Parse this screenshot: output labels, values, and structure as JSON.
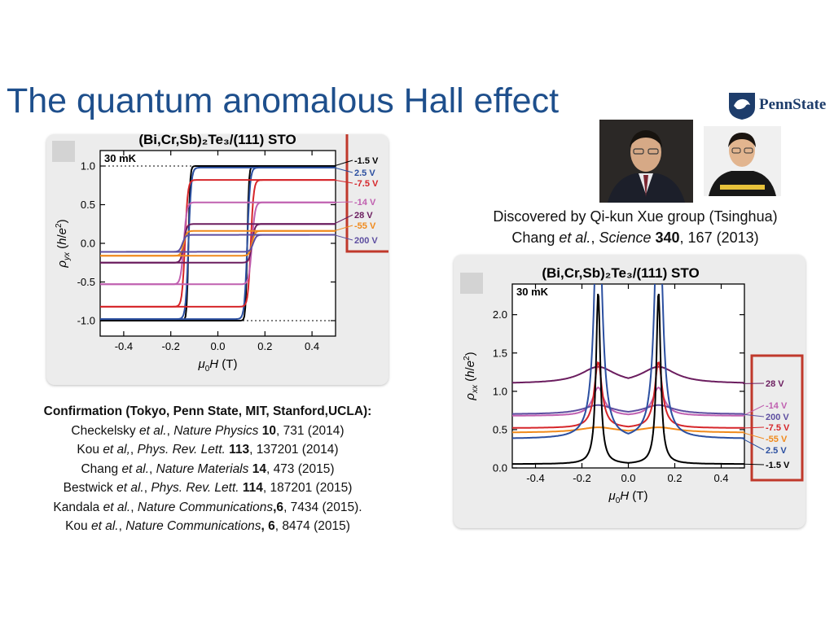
{
  "slide": {
    "title": "The quantum anomalous Hall effect",
    "logo_text": "PennState",
    "credit_line1": "Discovered by Qi-kun Xue group (Tsinghua)",
    "credit_line2": {
      "authors": "Chang ",
      "etal": "et al.",
      "sep": ", ",
      "journal": "Science",
      "volume": " 340",
      "pages": ", 167 (2013)"
    },
    "confirmation": {
      "heading": "Confirmation (Tokyo, Penn State, MIT, Stanford,UCLA):",
      "refs": [
        {
          "a": "Checkelsky ",
          "e": "et al.",
          "s": ", ",
          "j": "Nature Physics",
          "v": " 10",
          "p": ", 731 (2014)"
        },
        {
          "a": "Kou ",
          "e": "et al,",
          "s": ", ",
          "j": "Phys. Rev. Lett.",
          "v": " 113",
          "p": ", 137201 (2014)"
        },
        {
          "a": "Chang ",
          "e": "et al.",
          "s": ", ",
          "j": "Nature Materials",
          "v": " 14",
          "p": ", 473 (2015)"
        },
        {
          "a": "Bestwick ",
          "e": "et al.",
          "s": ", ",
          "j": "Phys. Rev. Lett.",
          "v": " 114",
          "p": ", 187201 (2015)"
        },
        {
          "a": "Kandala ",
          "e": "et al.",
          "s": ", ",
          "j": "Nature Communications",
          "v": ",6",
          "p": ", 7434 (2015)."
        },
        {
          "a": "Kou ",
          "e": "et al.",
          "s": ", ",
          "j": "Nature Communications",
          "v": ", 6",
          "p": ", 8474 (2015)"
        }
      ]
    }
  },
  "colors": {
    "title": "#1e4f8c",
    "highlight_box": "#c0392b",
    "panel_bg": "#ececec"
  },
  "chart_data": [
    {
      "type": "line",
      "title": "(Bi,Cr,Sb)₂Te₃/(111) STO",
      "annotation": "30 mK",
      "xlabel": "μ0H (T)",
      "ylabel": "ρyx (h/e²)",
      "xlim": [
        -0.5,
        0.5
      ],
      "ylim": [
        -1.2,
        1.2
      ],
      "xticks": [
        -0.4,
        -0.2,
        0.0,
        0.2,
        0.4
      ],
      "yticks": [
        -1.0,
        -0.5,
        0.0,
        0.5,
        1.0
      ],
      "xtick_labels": [
        "-0.4",
        "-0.2",
        "0.0",
        "0.2",
        "0.4"
      ],
      "ytick_labels": [
        "-1.0",
        "-0.5",
        "0.0",
        "0.5",
        "1.0"
      ],
      "reference_lines": [
        1.0,
        -1.0
      ],
      "legend_placement": "right, inside highlight box",
      "series": [
        {
          "name": "-1.5 V",
          "color": "#000000",
          "sat": 1.0,
          "hc": 0.125,
          "w": 0.007
        },
        {
          "name": "2.5 V",
          "color": "#2b4fa0",
          "sat": 0.98,
          "hc": 0.125,
          "w": 0.012
        },
        {
          "name": "-7.5 V",
          "color": "#d6262a",
          "sat": 0.82,
          "hc": 0.14,
          "w": 0.012
        },
        {
          "name": "-14 V",
          "color": "#c060b0",
          "sat": 0.53,
          "hc": 0.145,
          "w": 0.013
        },
        {
          "name": "28 V",
          "color": "#6b1d5f",
          "sat": 0.25,
          "hc": 0.145,
          "w": 0.012
        },
        {
          "name": "-55 V",
          "color": "#f08a1c",
          "sat": 0.16,
          "hc": 0.145,
          "w": 0.012
        },
        {
          "name": "200 V",
          "color": "#5d4ea0",
          "sat": 0.11,
          "hc": 0.15,
          "w": 0.013
        }
      ]
    },
    {
      "type": "line",
      "title": "(Bi,Cr,Sb)₂Te₃/(111) STO",
      "annotation": "30 mK",
      "xlabel": "μ0H (T)",
      "ylabel": "ρxx (h/e²)",
      "xlim": [
        -0.5,
        0.5
      ],
      "ylim": [
        0,
        2.4
      ],
      "xticks": [
        -0.4,
        -0.2,
        0.0,
        0.2,
        0.4
      ],
      "yticks": [
        0.0,
        0.5,
        1.0,
        1.5,
        2.0
      ],
      "xtick_labels": [
        "-0.4",
        "-0.2",
        "0.0",
        "0.2",
        "0.4"
      ],
      "ytick_labels": [
        "0.0",
        "0.5",
        "1.0",
        "1.5",
        "2.0"
      ],
      "legend_placement": "right, inside highlight box",
      "series": [
        {
          "name": "28 V",
          "color": "#6b1d5f",
          "base": 1.1,
          "peak": 1.32,
          "w": 0.09,
          "tail": 0.0
        },
        {
          "name": "-14 V",
          "color": "#c060b0",
          "base": 0.68,
          "peak": 1.05,
          "w": 0.03,
          "tail": 0.0
        },
        {
          "name": "200 V",
          "color": "#5d4ea0",
          "base": 0.7,
          "peak": 0.82,
          "w": 0.08,
          "tail": 0.0
        },
        {
          "name": "-7.5 V",
          "color": "#d6262a",
          "base": 0.52,
          "peak": 1.38,
          "w": 0.02,
          "tail": 0.0
        },
        {
          "name": "-55 V",
          "color": "#f08a1c",
          "base": 0.46,
          "peak": 0.53,
          "w": 0.1,
          "tail": 0.0
        },
        {
          "name": "2.5 V",
          "color": "#2b4fa0",
          "base": 0.38,
          "peak": 4.0,
          "w": 0.018,
          "tail": 0.0
        },
        {
          "name": "-1.5 V",
          "color": "#000000",
          "base": 0.05,
          "peak": 2.3,
          "w": 0.011,
          "tail": 0.0
        }
      ]
    }
  ]
}
